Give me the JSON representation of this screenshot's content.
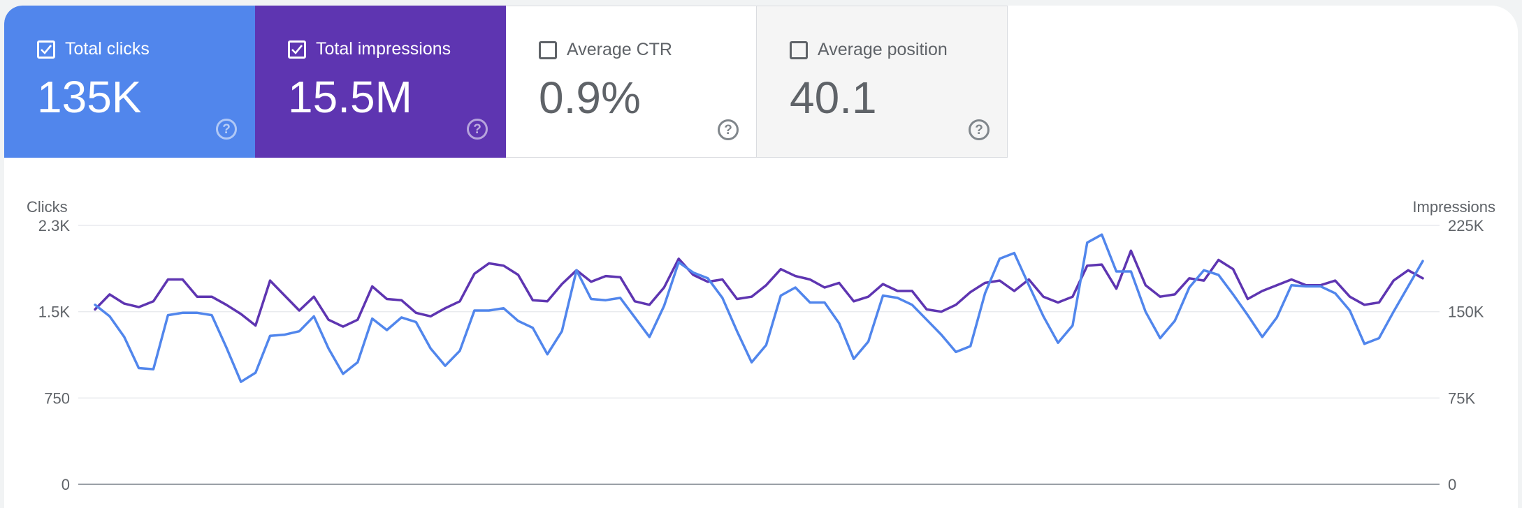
{
  "tiles": [
    {
      "label": "Total clicks",
      "value": "135K",
      "checked": true,
      "color": "#5186ec"
    },
    {
      "label": "Total impressions",
      "value": "15.5M",
      "checked": true,
      "color": "#5e35b1"
    },
    {
      "label": "Average CTR",
      "value": "0.9%",
      "checked": false
    },
    {
      "label": "Average position",
      "value": "40.1",
      "checked": false
    }
  ],
  "help_icon": "help-circle-icon",
  "chart_data": {
    "type": "line",
    "grid": true,
    "legend": "none",
    "y_left": {
      "label": "Clicks",
      "ticks": [
        "0",
        "750",
        "1.5K",
        "2.3K"
      ],
      "range": [
        0,
        2250
      ]
    },
    "y_right": {
      "label": "Impressions",
      "ticks": [
        "0",
        "75K",
        "150K",
        "225K"
      ],
      "range": [
        0,
        225000
      ]
    },
    "series": [
      {
        "axis": "left",
        "color": "#5186ec",
        "values": [
          1560,
          1460,
          1280,
          1010,
          1000,
          1470,
          1490,
          1490,
          1470,
          1190,
          890,
          970,
          1290,
          1300,
          1330,
          1460,
          1180,
          960,
          1060,
          1440,
          1340,
          1450,
          1410,
          1180,
          1030,
          1160,
          1510,
          1510,
          1530,
          1420,
          1360,
          1130,
          1330,
          1860,
          1610,
          1600,
          1620,
          1450,
          1280,
          1550,
          1930,
          1840,
          1790,
          1620,
          1330,
          1060,
          1210,
          1640,
          1710,
          1580,
          1580,
          1400,
          1090,
          1240,
          1640,
          1620,
          1560,
          1430,
          1300,
          1150,
          1200,
          1660,
          1960,
          2010,
          1730,
          1460,
          1230,
          1380,
          2100,
          2170,
          1850,
          1850,
          1500,
          1270,
          1420,
          1710,
          1860,
          1820,
          1650,
          1470,
          1280,
          1450,
          1730,
          1720,
          1720,
          1660,
          1510,
          1220,
          1270,
          1500,
          1720,
          1940
        ]
      },
      {
        "axis": "right",
        "color": "#5e35b1",
        "values": [
          152000,
          165000,
          157000,
          154000,
          159000,
          178000,
          178000,
          163000,
          163000,
          156000,
          148000,
          138000,
          177000,
          164000,
          151000,
          163000,
          143000,
          137000,
          143000,
          172000,
          161000,
          160000,
          149000,
          146000,
          153000,
          159000,
          183000,
          192000,
          190000,
          182000,
          160000,
          159000,
          174000,
          186000,
          176000,
          181000,
          180000,
          159000,
          156000,
          171000,
          196000,
          182000,
          176000,
          178000,
          161000,
          163000,
          173000,
          187000,
          181000,
          178000,
          171000,
          175000,
          159000,
          163000,
          174000,
          168000,
          168000,
          152000,
          150000,
          156000,
          167000,
          175000,
          177000,
          168000,
          178000,
          163000,
          158000,
          163000,
          190000,
          191000,
          170000,
          203000,
          173000,
          163000,
          165000,
          179000,
          177000,
          195000,
          187000,
          161000,
          168000,
          173000,
          178000,
          173000,
          173000,
          177000,
          163000,
          156000,
          158000,
          177000,
          186000,
          179000
        ]
      }
    ]
  }
}
